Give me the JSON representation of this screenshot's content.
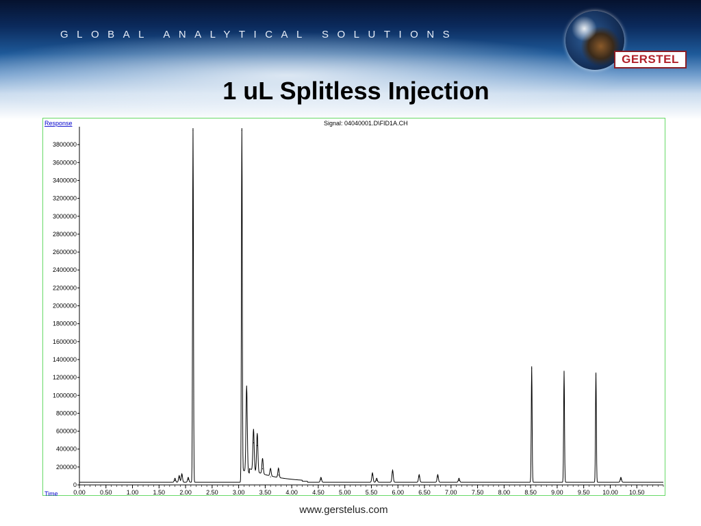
{
  "header": {
    "tagline": "GLOBAL ANALYTICAL SOLUTIONS",
    "logo_text": "GERSTEL"
  },
  "slide": {
    "title": "1 uL Splitless Injection",
    "footer_url": "www.gerstelus.com"
  },
  "colors": {
    "axis_label": "#0000cc",
    "frame_border": "#66d966",
    "trace": "#000000",
    "logo_red": "#b0202a"
  },
  "chart_data": {
    "type": "line",
    "title": "Signal: 04040001.D\\FID1A.CH",
    "ylabel": "Response",
    "xlabel": "Time",
    "xlim": [
      0,
      11.0
    ],
    "ylim": [
      0,
      3960000
    ],
    "x_ticks": [
      "0.00",
      "0.50",
      "1.00",
      "1.50",
      "2.00",
      "2.50",
      "3.00",
      "3.50",
      "4.00",
      "4.50",
      "5.00",
      "5.50",
      "6.00",
      "6.50",
      "7.00",
      "7.50",
      "8.00",
      "8.50",
      "9.00",
      "9.50",
      "10.00",
      "10.50"
    ],
    "y_ticks": [
      "0",
      "200000",
      "400000",
      "600000",
      "800000",
      "1000000",
      "1200000",
      "1400000",
      "1600000",
      "1800000",
      "2000000",
      "2200000",
      "2400000",
      "2600000",
      "2800000",
      "3000000",
      "3200000",
      "3400000",
      "3600000",
      "3800000"
    ],
    "baseline": 30000,
    "peaks": [
      {
        "rt": 1.8,
        "height": 50000
      },
      {
        "rt": 1.88,
        "height": 80000
      },
      {
        "rt": 1.93,
        "height": 100000
      },
      {
        "rt": 2.05,
        "height": 60000
      },
      {
        "rt": 2.14,
        "height": 3960000
      },
      {
        "rt": 3.06,
        "height": 3960000
      },
      {
        "rt": 3.15,
        "height": 970000
      },
      {
        "rt": 3.28,
        "height": 470000
      },
      {
        "rt": 3.35,
        "height": 440000
      },
      {
        "rt": 3.45,
        "height": 180000
      },
      {
        "rt": 3.6,
        "height": 90000
      },
      {
        "rt": 3.75,
        "height": 110000
      },
      {
        "rt": 4.55,
        "height": 60000
      },
      {
        "rt": 5.52,
        "height": 110000
      },
      {
        "rt": 5.6,
        "height": 50000
      },
      {
        "rt": 5.9,
        "height": 140000
      },
      {
        "rt": 6.4,
        "height": 90000
      },
      {
        "rt": 6.75,
        "height": 90000
      },
      {
        "rt": 7.15,
        "height": 50000
      },
      {
        "rt": 8.52,
        "height": 1300000
      },
      {
        "rt": 9.13,
        "height": 1250000
      },
      {
        "rt": 9.73,
        "height": 1230000
      },
      {
        "rt": 10.2,
        "height": 60000
      }
    ]
  }
}
